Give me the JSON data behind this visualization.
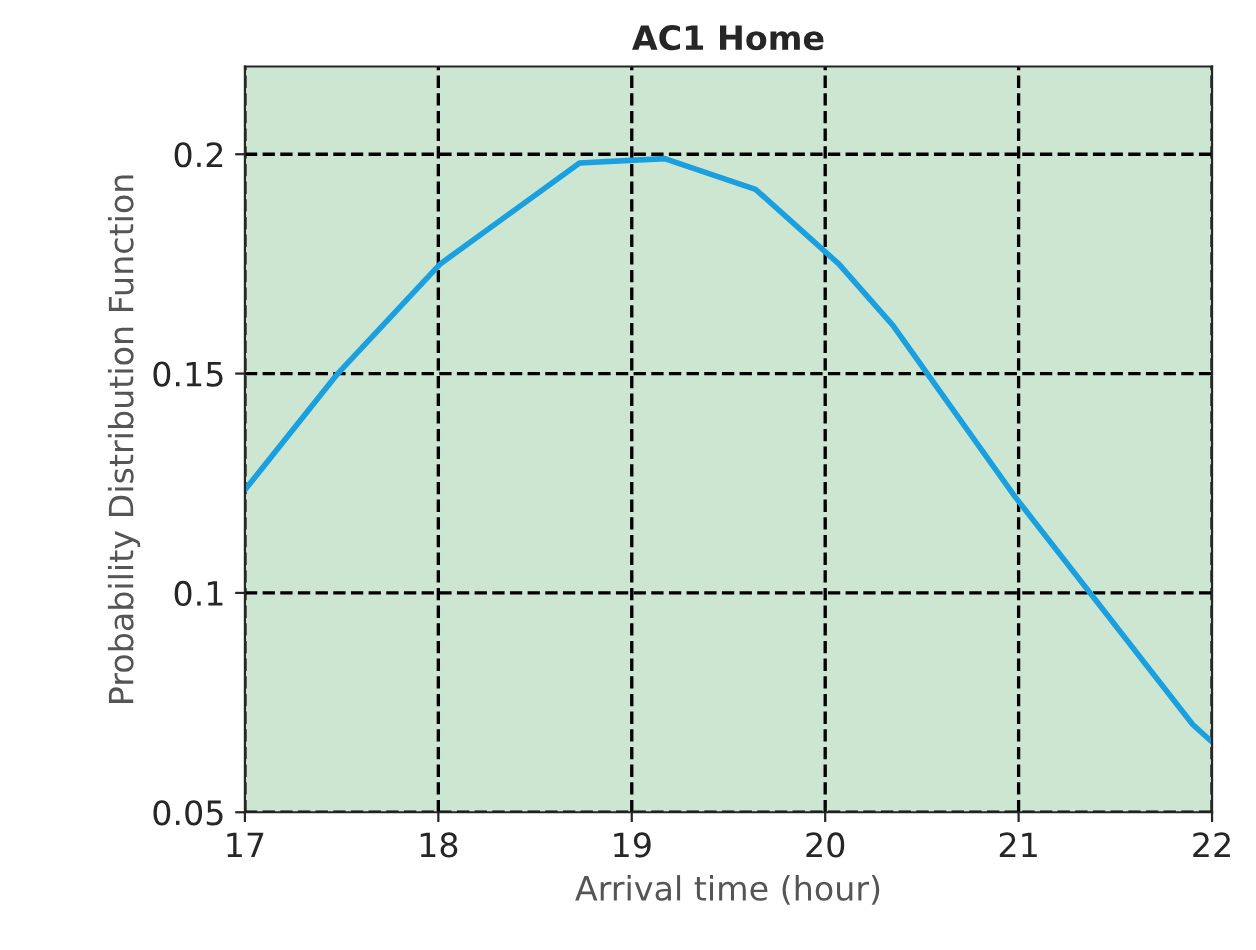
{
  "chart_data": {
    "type": "line",
    "title": "AC1 Home",
    "xlabel": "Arrival time (hour)",
    "ylabel": "Probability Distribution Function",
    "x": [
      17,
      17.48,
      18.01,
      18.73,
      19.17,
      19.64,
      20.07,
      20.35,
      20.98,
      21.9,
      22
    ],
    "series": [
      {
        "color": "#1a9fdf",
        "values": [
          0.1235,
          0.15,
          0.175,
          0.198,
          0.199,
          0.192,
          0.175,
          0.161,
          0.122,
          0.07,
          0.066
        ]
      }
    ],
    "xlim": [
      17,
      22
    ],
    "xticks": [
      17,
      18,
      19,
      20,
      21,
      22
    ],
    "ylim": [
      0.05,
      0.22
    ],
    "yticks": [
      0.05,
      0.1,
      0.15,
      0.2
    ],
    "grid": true,
    "line_style": "solid",
    "marker": "none",
    "legend": false
  }
}
